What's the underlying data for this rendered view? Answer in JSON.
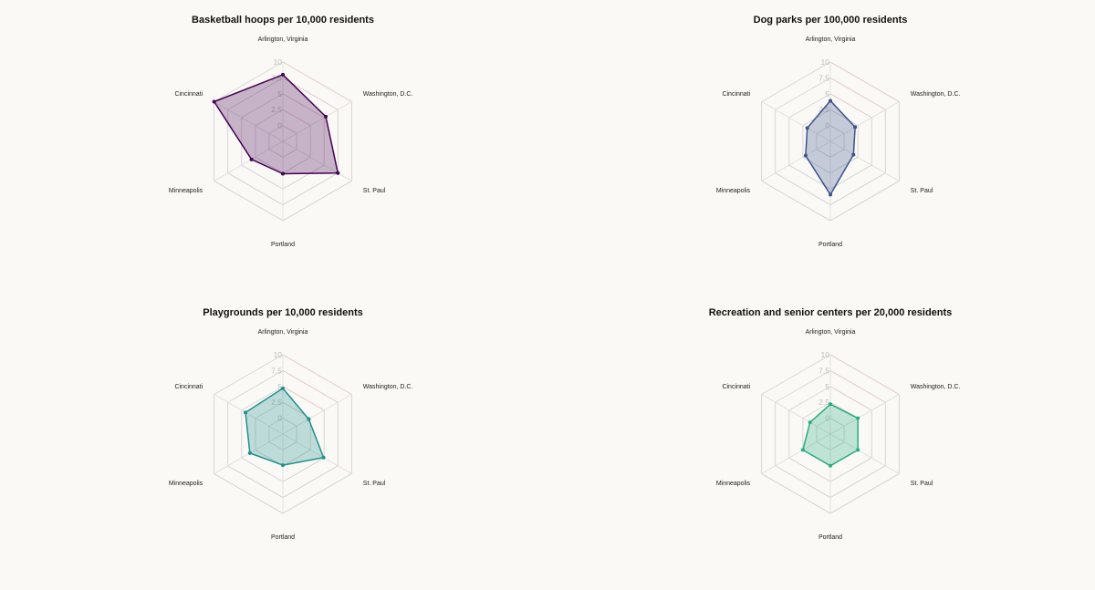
{
  "chart_data": [
    {
      "type": "radar",
      "title": "Basketball hoops per 10,000 residents",
      "axes": [
        "Arlington, Virginia",
        "Washington, D.C.",
        "St. Paul",
        "Portland",
        "Minneapolis",
        "Cincinnati"
      ],
      "rticks": [
        "0",
        "2.5",
        "5",
        "7.5",
        "10"
      ],
      "rlim": [
        -2.5,
        10
      ],
      "values": [
        8.0,
        5.3,
        7.5,
        2.6,
        3.2,
        10.0
      ],
      "color": "#440154"
    },
    {
      "type": "radar",
      "title": "Dog parks per 100,000 residents",
      "axes": [
        "Arlington, Virginia",
        "Washington, D.C.",
        "St. Paul",
        "Portland",
        "Minneapolis",
        "Cincinnati"
      ],
      "rticks": [
        "0",
        "2.5",
        "5",
        "7.5",
        "10"
      ],
      "rlim": [
        -2.5,
        10
      ],
      "values": [
        3.9,
        2.0,
        1.7,
        5.9,
        2.0,
        1.7
      ],
      "color": "#3b528b"
    },
    {
      "type": "radar",
      "title": "Playgrounds per 10,000 residents",
      "axes": [
        "Arlington, Virginia",
        "Washington, D.C.",
        "St. Paul",
        "Portland",
        "Minneapolis",
        "Cincinnati"
      ],
      "rticks": [
        "0",
        "2.5",
        "5",
        "7.5",
        "10"
      ],
      "rlim": [
        -2.5,
        10
      ],
      "values": [
        4.7,
        2.2,
        4.9,
        2.4,
        3.5,
        4.3
      ],
      "color": "#21908c"
    },
    {
      "type": "radar",
      "title": "Recreation and senior centers per 20,000 residents",
      "axes": [
        "Arlington, Virginia",
        "Washington, D.C.",
        "St. Paul",
        "Portland",
        "Minneapolis",
        "Cincinnati"
      ],
      "rticks": [
        "0",
        "2.5",
        "5",
        "7.5",
        "10"
      ],
      "rlim": [
        -2.5,
        10
      ],
      "values": [
        2.2,
        2.5,
        2.5,
        2.5,
        2.5,
        1.2
      ],
      "color": "#27ad81"
    }
  ]
}
